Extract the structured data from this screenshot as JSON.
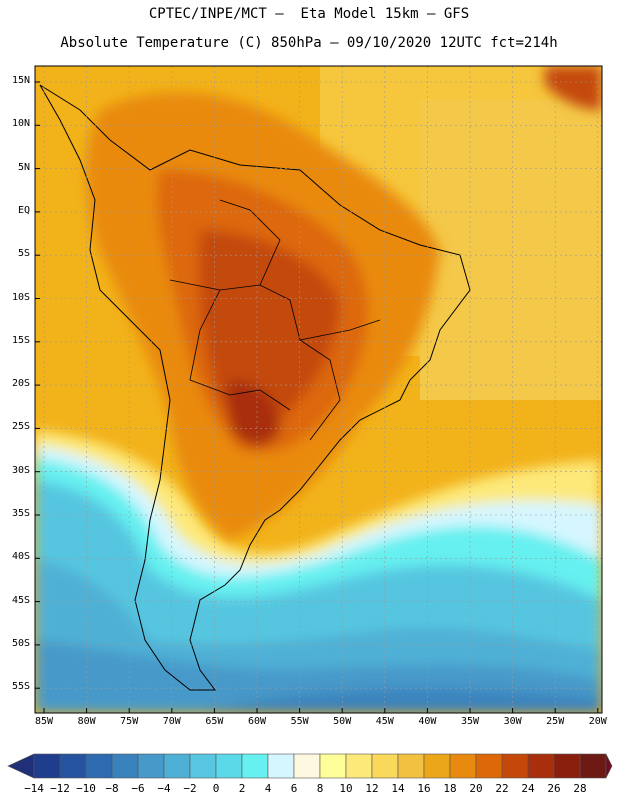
{
  "header": {
    "line1": "CPTEC/INPE/MCT –  Eta Model 15km – GFS",
    "line2": "Absolute Temperature (C) 850hPa – 09/10/2020 12UTC fct=214h"
  },
  "map": {
    "lat_labels": [
      "15N",
      "10N",
      "5N",
      "EQ",
      "5S",
      "10S",
      "15S",
      "20S",
      "25S",
      "30S",
      "35S",
      "40S",
      "45S",
      "50S",
      "55S"
    ],
    "lon_labels": [
      "85W",
      "80W",
      "75W",
      "70W",
      "65W",
      "60W",
      "55W",
      "50W",
      "45W",
      "40W",
      "35W",
      "30W",
      "25W",
      "20W"
    ]
  },
  "colorbar": {
    "labels": [
      "-14",
      "-12",
      "-10",
      "-8",
      "-6",
      "-4",
      "-2",
      "0",
      "2",
      "4",
      "6",
      "8",
      "10",
      "12",
      "14",
      "16",
      "18",
      "20",
      "22",
      "24",
      "26",
      "28"
    ],
    "colors": [
      "#1f3d8c",
      "#26539f",
      "#2e6aaf",
      "#3a82bd",
      "#4699c9",
      "#4fb0d5",
      "#57c6e0",
      "#5cd9e8",
      "#66f0f0",
      "#d6f6ff",
      "#fff8e1",
      "#ffff99",
      "#fde97a",
      "#f9d85b",
      "#f2c140",
      "#eba61a",
      "#e98a10",
      "#dd6808",
      "#c4480a",
      "#a92e0c",
      "#8a1e0c",
      "#6d1a14"
    ],
    "under_color": "#1f2f78",
    "over_color": "#6a0f20"
  }
}
